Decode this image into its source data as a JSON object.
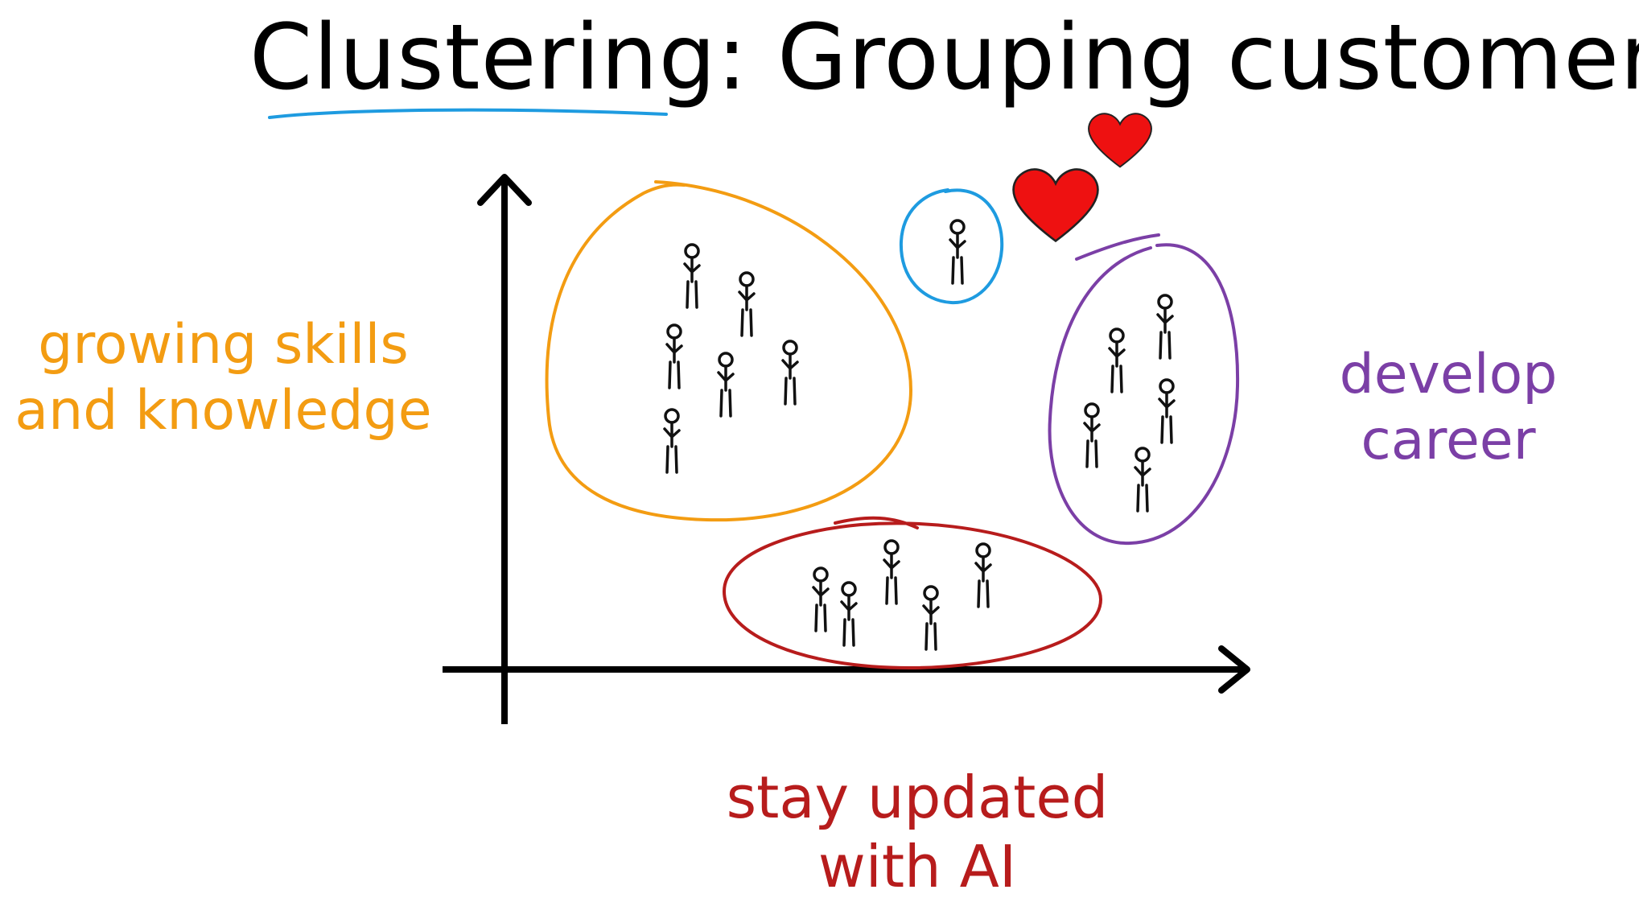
{
  "title": "Clustering: Grouping customers",
  "title_underline_color": "#1e9be0",
  "clusters": {
    "orange": {
      "label_line1": "growing skills",
      "label_line2": "and knowledge",
      "color": "#f39c12"
    },
    "purple": {
      "label_line1": "develop",
      "label_line2": "career",
      "color": "#7b3fa6"
    },
    "red": {
      "label_line1": "stay updated",
      "label_line2": "with AI",
      "color": "#b71c1c"
    },
    "blue": {
      "color": "#1e9be0"
    }
  },
  "icons": {
    "person": "person-icon",
    "heart": "heart-icon"
  },
  "heart_color": "#ee1111"
}
